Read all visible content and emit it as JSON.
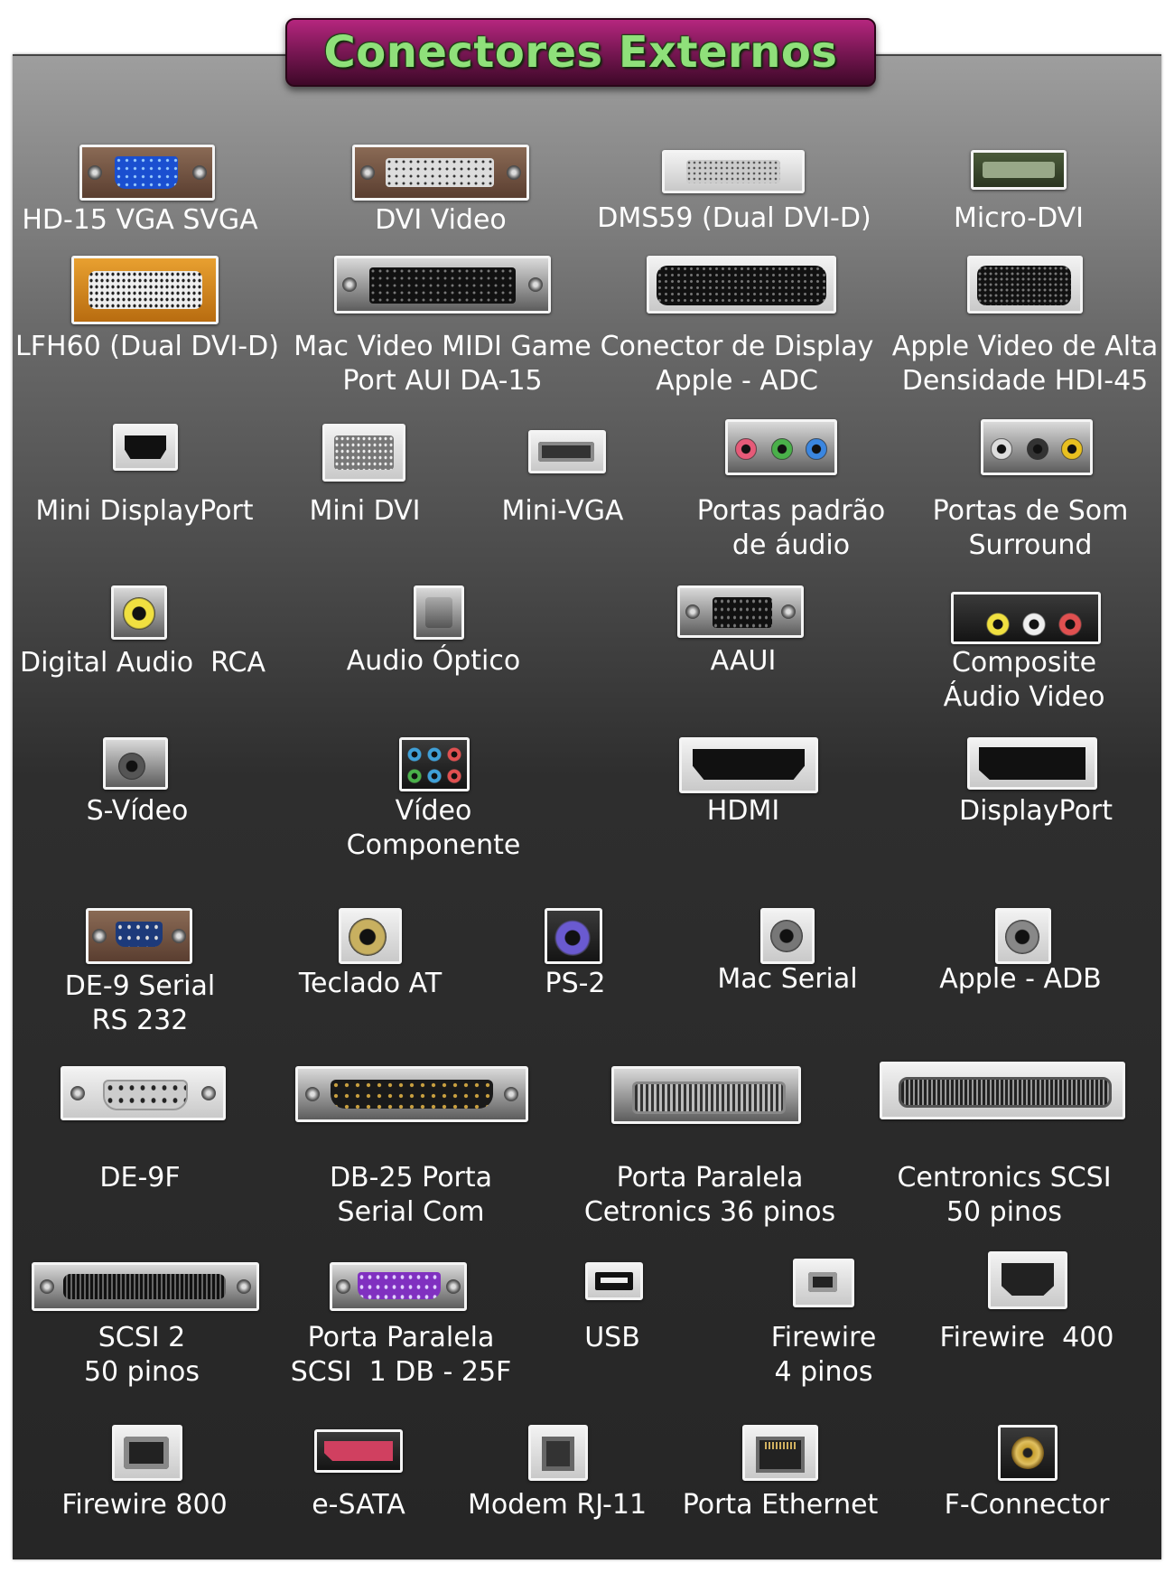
{
  "title": "Conectores Externos",
  "connectors": [
    {
      "label": "HD-15 VGA SVGA",
      "icon": "vga-port-icon"
    },
    {
      "label": "DVI Video",
      "icon": "dvi-port-icon"
    },
    {
      "label": "DMS59 (Dual DVI-D)",
      "icon": "dms59-port-icon"
    },
    {
      "label": "Micro-DVI",
      "icon": "micro-dvi-port-icon"
    },
    {
      "label": "LFH60 (Dual DVI-D)",
      "icon": "lfh60-port-icon"
    },
    {
      "label": "Mac Video MIDI Game\nPort AUI DA-15",
      "icon": "da15-port-icon"
    },
    {
      "label": "Conector de Display\nApple - ADC",
      "icon": "adc-port-icon"
    },
    {
      "label": "Apple Video de Alta\nDensidade HDI-45",
      "icon": "hdi45-port-icon"
    },
    {
      "label": "Mini DisplayPort",
      "icon": "mini-displayport-icon"
    },
    {
      "label": "Mini DVI",
      "icon": "mini-dvi-icon"
    },
    {
      "label": "Mini-VGA",
      "icon": "mini-vga-icon"
    },
    {
      "label": "Portas padrão\nde áudio",
      "icon": "audio-jacks-icon"
    },
    {
      "label": "Portas de Som\nSurround",
      "icon": "surround-jacks-icon"
    },
    {
      "label": "Digital Audio  RCA",
      "icon": "rca-jack-icon"
    },
    {
      "label": "Audio Óptico",
      "icon": "optical-audio-icon"
    },
    {
      "label": "AAUI",
      "icon": "aaui-port-icon"
    },
    {
      "label": "Composite\nÁudio Video",
      "icon": "composite-av-icon"
    },
    {
      "label": "S-Vídeo",
      "icon": "s-video-icon"
    },
    {
      "label": "Vídeo\nComponente",
      "icon": "component-video-icon"
    },
    {
      "label": "HDMI",
      "icon": "hdmi-port-icon"
    },
    {
      "label": "DisplayPort",
      "icon": "displayport-icon"
    },
    {
      "label": "DE-9 Serial\nRS 232",
      "icon": "de9-serial-icon"
    },
    {
      "label": "Teclado AT",
      "icon": "at-keyboard-icon"
    },
    {
      "label": "PS-2",
      "icon": "ps2-port-icon"
    },
    {
      "label": "Mac Serial",
      "icon": "mac-serial-icon"
    },
    {
      "label": "Apple - ADB",
      "icon": "adb-port-icon"
    },
    {
      "label": "DE-9F",
      "icon": "de9f-connector-icon"
    },
    {
      "label": "DB-25 Porta\nSerial Com",
      "icon": "db25-port-icon"
    },
    {
      "label": "Porta Paralela\nCetronics 36 pinos",
      "icon": "centronics36-icon"
    },
    {
      "label": "Centronics SCSI\n50 pinos",
      "icon": "centronics-scsi-icon"
    },
    {
      "label": "SCSI 2\n50 pinos",
      "icon": "scsi2-port-icon"
    },
    {
      "label": "Porta Paralela\nSCSI  1 DB - 25F",
      "icon": "parallel-db25-icon"
    },
    {
      "label": "USB",
      "icon": "usb-port-icon"
    },
    {
      "label": "Firewire\n4 pinos",
      "icon": "firewire4-icon"
    },
    {
      "label": "Firewire  400",
      "icon": "firewire400-icon"
    },
    {
      "label": "Firewire 800",
      "icon": "firewire800-icon"
    },
    {
      "label": "e-SATA",
      "icon": "esata-port-icon"
    },
    {
      "label": "Modem RJ-11",
      "icon": "rj11-port-icon"
    },
    {
      "label": "Porta Ethernet",
      "icon": "ethernet-port-icon"
    },
    {
      "label": "F-Connector",
      "icon": "f-connector-icon"
    }
  ]
}
